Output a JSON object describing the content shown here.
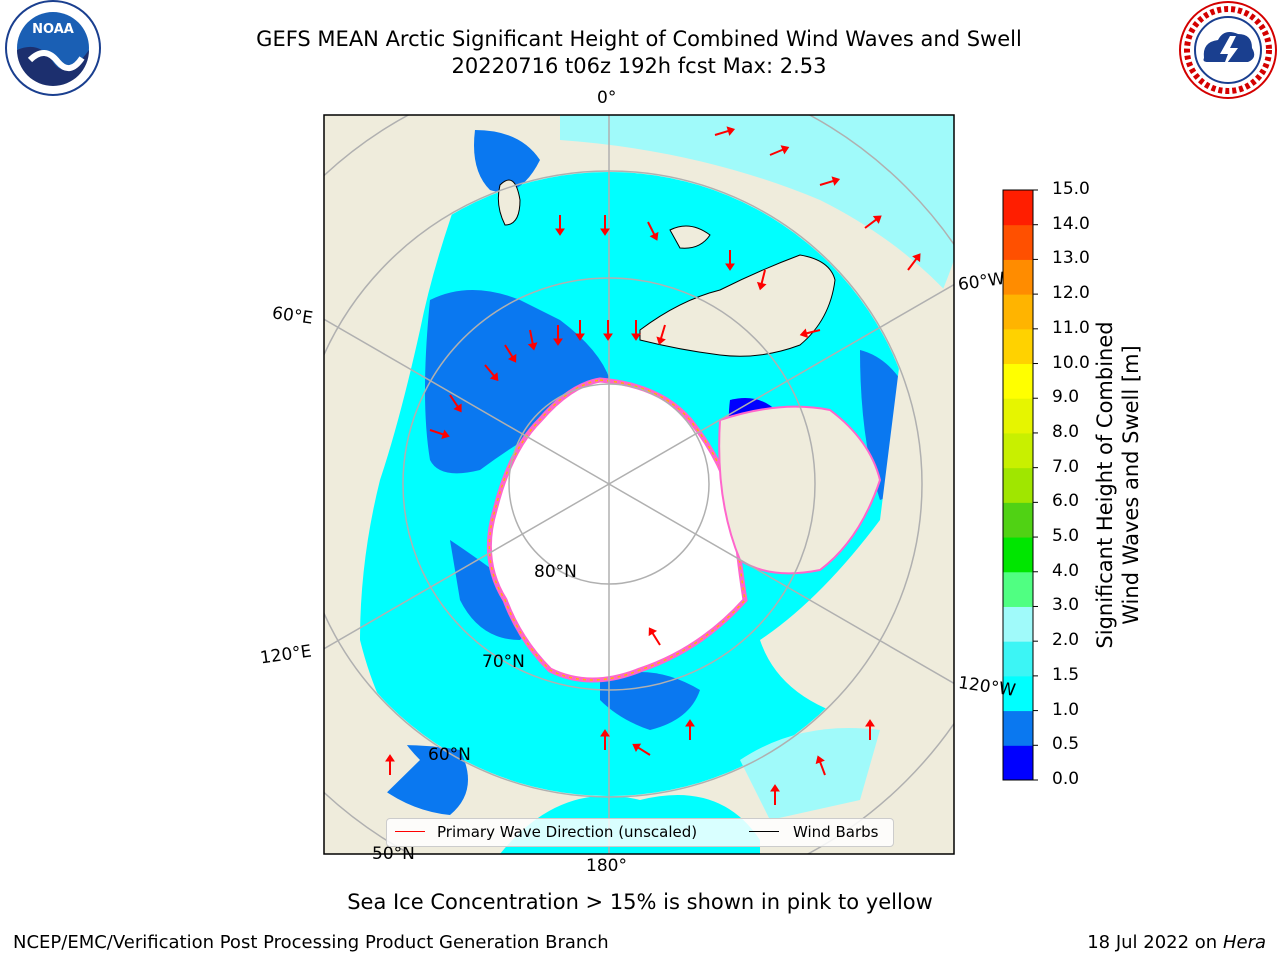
{
  "title_line1": "GEFS MEAN Arctic Significant Height of Combined Wind Waves and Swell",
  "title_line2": "20220716 t06z 192h fcst   Max: 2.53",
  "logos": {
    "left": "noaa-logo",
    "right": "nws-logo"
  },
  "map": {
    "projection": "north-polar-stereographic",
    "lon_labels": [
      "0°",
      "60°W",
      "120°W",
      "180°",
      "120°E",
      "60°E"
    ],
    "lat_labels": [
      "80°N",
      "70°N",
      "60°N",
      "50°N"
    ],
    "colors": {
      "land": "#efecdc",
      "ice": "#ffffff",
      "grid": "#b0b0b0",
      "coast": "#000000",
      "wave_arrow": "#ff0000"
    }
  },
  "legend": {
    "items": [
      {
        "label": "Primary Wave Direction (unscaled)",
        "color": "#ff0000"
      },
      {
        "label": "Wind Barbs",
        "color": "#000000"
      }
    ]
  },
  "colorbar": {
    "label_line1": "Significant Height of Combined",
    "label_line2": "Wind Waves and Swell [m]",
    "ticks": [
      "0.0",
      "0.5",
      "1.0",
      "1.5",
      "2.0",
      "3.0",
      "4.0",
      "5.0",
      "6.0",
      "7.0",
      "8.0",
      "9.0",
      "10.0",
      "11.0",
      "12.0",
      "13.0",
      "14.0",
      "15.0"
    ],
    "colors": [
      "#0000ff",
      "#0a78f0",
      "#00ffff",
      "#3cf5f5",
      "#a0fafa",
      "#50ff82",
      "#00e600",
      "#50d214",
      "#a0e600",
      "#c8f000",
      "#e6f500",
      "#ffff00",
      "#ffd200",
      "#ffb400",
      "#ff8c00",
      "#ff5000",
      "#ff1e00"
    ]
  },
  "caption": "Sea Ice Concentration > 15% is shown in pink to yellow",
  "footer": {
    "left": "NCEP/EMC/Verification Post Processing Product Generation Branch",
    "right_prefix": "18 Jul 2022 on ",
    "right_host": "Hera"
  }
}
